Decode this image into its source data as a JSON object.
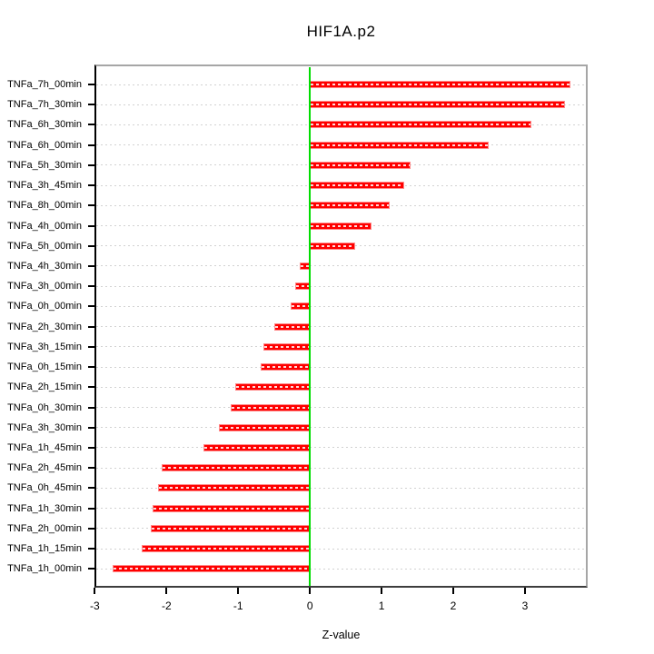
{
  "chart_data": {
    "type": "bar",
    "orientation": "horizontal",
    "title": "HIF1A.p2",
    "xlabel": "Z-value",
    "ylabel": "",
    "xlim": [
      -3.005,
      3.875
    ],
    "x_ticks": [
      -3,
      -2,
      -1,
      0,
      1,
      2,
      3
    ],
    "grid": "dotted-horizontal",
    "legend": "none",
    "categories": [
      "TNFa_7h_00min",
      "TNFa_7h_30min",
      "TNFa_6h_30min",
      "TNFa_6h_00min",
      "TNFa_5h_30min",
      "TNFa_3h_45min",
      "TNFa_8h_00min",
      "TNFa_4h_00min",
      "TNFa_5h_00min",
      "TNFa_4h_30min",
      "TNFa_3h_00min",
      "TNFa_0h_00min",
      "TNFa_2h_30min",
      "TNFa_3h_15min",
      "TNFa_0h_15min",
      "TNFa_2h_15min",
      "TNFa_0h_30min",
      "TNFa_3h_30min",
      "TNFa_1h_45min",
      "TNFa_2h_45min",
      "TNFa_0h_45min",
      "TNFa_1h_30min",
      "TNFa_2h_00min",
      "TNFa_1h_15min",
      "TNFa_1h_00min"
    ],
    "values": [
      3.63,
      3.56,
      3.09,
      2.5,
      1.4,
      1.32,
      1.11,
      0.86,
      0.63,
      -0.14,
      -0.21,
      -0.27,
      -0.49,
      -0.65,
      -0.68,
      -1.04,
      -1.1,
      -1.27,
      -1.49,
      -2.07,
      -2.12,
      -2.19,
      -2.22,
      -2.35,
      -2.75
    ],
    "colors": {
      "bar": "#ff0000",
      "bar_edge": "#ff8a8a",
      "zero_line": "#00dd00",
      "grid": "#d2d2d2",
      "box": "#a6a6a6",
      "axis": "#000000",
      "text": "#000000"
    }
  }
}
